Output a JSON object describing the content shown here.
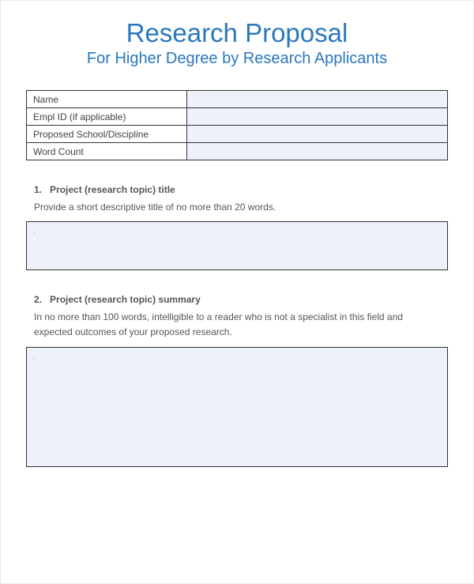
{
  "colors": {
    "title": "#2a78bd",
    "subtitle": "#2a78bd",
    "sectionHeading": "#555555",
    "sectionDesc": "#555555",
    "tableBorder": "#333333",
    "fieldFill": "#ecf1fa",
    "background": "#ffffff"
  },
  "header": {
    "title": "Research Proposal",
    "subtitle": "For Higher Degree by Research Applicants"
  },
  "infoTable": {
    "rows": [
      {
        "label": "Name",
        "value": ""
      },
      {
        "label": "Empl ID (if applicable)",
        "value": ""
      },
      {
        "label": "Proposed School/Discipline",
        "value": ""
      },
      {
        "label": "Word Count",
        "value": ""
      }
    ]
  },
  "sections": [
    {
      "number": "1.",
      "heading": "Project (research topic) title",
      "description": "Provide a short descriptive title of no more than 20 words.",
      "boxClass": "box-short",
      "boxDot": "."
    },
    {
      "number": "2.",
      "heading": "Project (research topic) summary",
      "description": "In no more than 100 words, intelligible to a reader who is not a specialist in this field and expected outcomes of your proposed research.",
      "boxClass": "box-tall",
      "boxDot": "."
    }
  ]
}
